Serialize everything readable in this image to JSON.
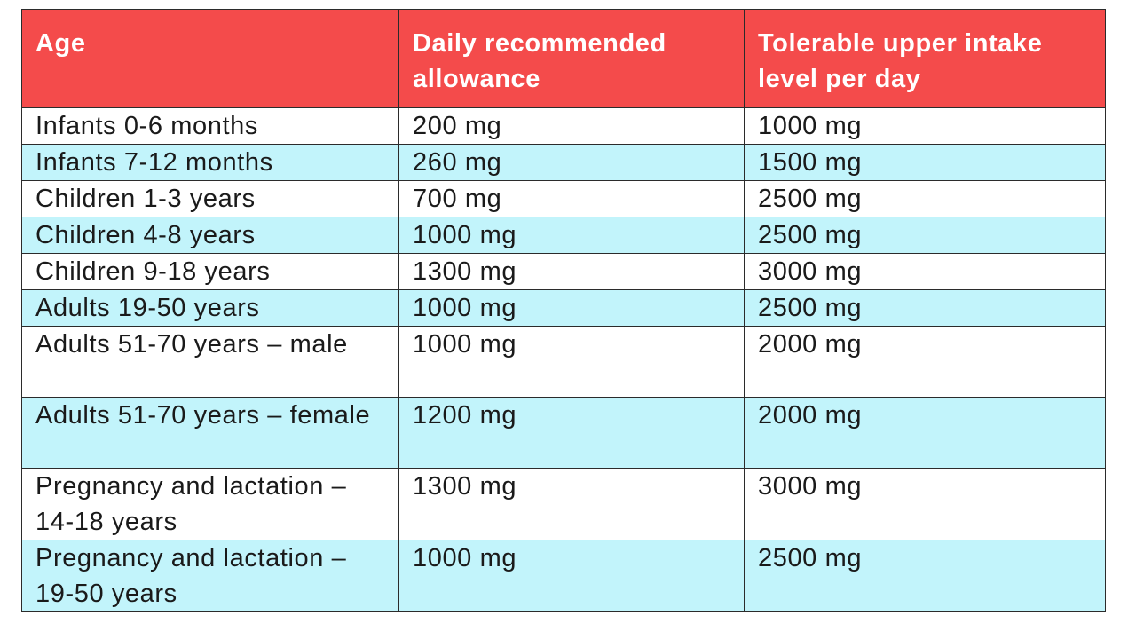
{
  "table": {
    "headers": [
      "Age",
      "Daily recommended allowance",
      "Tolerable upper intake level per day"
    ],
    "rows": [
      {
        "age": "Infants 0-6 months",
        "daily": "200 mg",
        "upper": "1000 mg"
      },
      {
        "age": "Infants 7-12 months",
        "daily": "260 mg",
        "upper": "1500 mg"
      },
      {
        "age": "Children 1-3 years",
        "daily": "700 mg",
        "upper": "2500 mg"
      },
      {
        "age": "Children 4-8 years",
        "daily": "1000 mg",
        "upper": "2500 mg"
      },
      {
        "age": "Children 9-18 years",
        "daily": "1300 mg",
        "upper": "3000 mg"
      },
      {
        "age": "Adults 19-50 years",
        "daily": "1000 mg",
        "upper": "2500 mg"
      },
      {
        "age": "Adults 51-70 years – male",
        "daily": "1000 mg",
        "upper": "2000 mg"
      },
      {
        "age": "Adults 51-70 years – female",
        "daily": "1200 mg",
        "upper": "2000 mg"
      },
      {
        "age": "Pregnancy and lactation – 14-18 years",
        "daily": "1300 mg",
        "upper": "3000 mg"
      },
      {
        "age": "Pregnancy and lactation – 19-50 years",
        "daily": "1000 mg",
        "upper": "2500 mg"
      }
    ]
  },
  "colors": {
    "header_bg": "#f44b4b",
    "header_text": "#ffffff",
    "row_alt_bg": "#c2f4fb",
    "row_bg": "#ffffff",
    "border": "#2b2b2b"
  }
}
